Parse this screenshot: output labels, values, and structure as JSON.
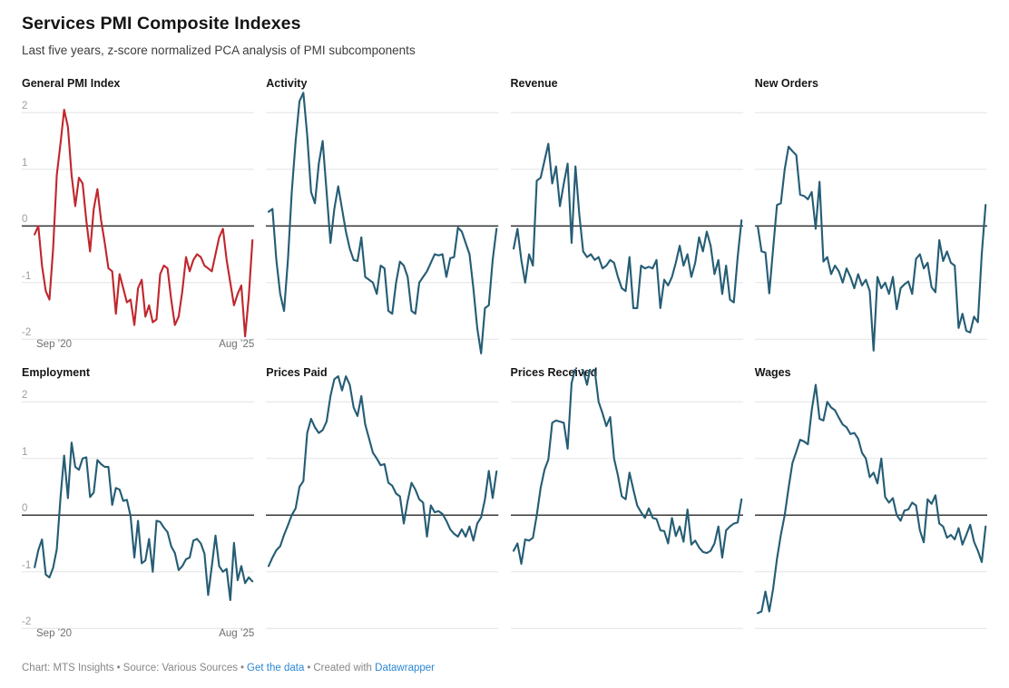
{
  "header": {
    "title": "Services PMI Composite Indexes",
    "subtitle": "Last five years, z-score normalized PCA analysis of PMI subcomponents"
  },
  "footer": {
    "chart_credit": "Chart: MTS Insights",
    "source_label": "Source: Various Sources",
    "get_data_link": "Get the data",
    "created_with": "Created with",
    "datawrapper_link": "Datawrapper",
    "separator": "•"
  },
  "colors": {
    "highlight_red": "#c0272d",
    "series_blue": "#255d75",
    "gridline": "#e4e4e4",
    "zero_line": "#121212",
    "link_blue": "#2b87d3"
  },
  "chart_data": {
    "type": "line",
    "layout": "small-multiples 4x2",
    "x_unit": "month",
    "n_points": 60,
    "x_start_label": "Sep ’20",
    "x_end_label": "Aug ’25",
    "x_tick_labels": [
      "Sep ’20",
      "Aug ’25"
    ],
    "ylim": [
      -2.3,
      2.58
    ],
    "yticks": [
      2,
      1,
      0,
      -1,
      -2
    ],
    "ytick_labels": [
      "2",
      "1",
      "0",
      "-1",
      "-2"
    ],
    "grid": "horizontal-only",
    "legend_position": "none",
    "panels": [
      {
        "title": "General PMI Index",
        "color": "#c0272d",
        "values": [
          -0.15,
          0.0,
          -0.7,
          -1.15,
          -1.3,
          -0.4,
          0.9,
          1.45,
          2.05,
          1.75,
          0.9,
          0.35,
          0.85,
          0.75,
          0.1,
          -0.45,
          0.3,
          0.65,
          0.1,
          -0.3,
          -0.75,
          -0.8,
          -1.55,
          -0.85,
          -1.1,
          -1.35,
          -1.3,
          -1.75,
          -1.1,
          -0.95,
          -1.6,
          -1.4,
          -1.7,
          -1.65,
          -0.85,
          -0.7,
          -0.75,
          -1.3,
          -1.75,
          -1.6,
          -1.15,
          -0.55,
          -0.8,
          -0.6,
          -0.5,
          -0.55,
          -0.7,
          -0.75,
          -0.8,
          -0.5,
          -0.2,
          -0.05,
          -0.6,
          -1.0,
          -1.4,
          -1.2,
          -1.05,
          -1.95,
          -1.25,
          -0.25
        ]
      },
      {
        "title": "Activity",
        "color": "#255d75",
        "values": [
          0.25,
          0.3,
          -0.6,
          -1.2,
          -1.5,
          -0.6,
          0.6,
          1.5,
          2.2,
          2.35,
          1.6,
          0.6,
          0.4,
          1.1,
          1.5,
          0.6,
          -0.3,
          0.3,
          0.7,
          0.3,
          -0.1,
          -0.4,
          -0.6,
          -0.62,
          -0.2,
          -0.9,
          -0.95,
          -1.0,
          -1.2,
          -0.7,
          -0.75,
          -1.5,
          -1.55,
          -1.0,
          -0.63,
          -0.7,
          -0.9,
          -1.5,
          -1.55,
          -1.0,
          -0.9,
          -0.8,
          -0.65,
          -0.5,
          -0.52,
          -0.5,
          -0.9,
          -0.57,
          -0.55,
          -0.03,
          -0.1,
          -0.3,
          -0.5,
          -1.1,
          -1.8,
          -2.25,
          -1.45,
          -1.4,
          -0.6,
          -0.05
        ]
      },
      {
        "title": "Revenue",
        "color": "#255d75",
        "values": [
          -0.4,
          -0.05,
          -0.6,
          -1.0,
          -0.5,
          -0.7,
          0.8,
          0.85,
          1.15,
          1.45,
          0.75,
          1.05,
          0.35,
          0.75,
          1.1,
          -0.3,
          1.05,
          0.2,
          -0.45,
          -0.55,
          -0.5,
          -0.6,
          -0.55,
          -0.75,
          -0.7,
          -0.6,
          -0.65,
          -0.9,
          -1.1,
          -1.15,
          -0.55,
          -1.45,
          -1.45,
          -0.7,
          -0.75,
          -0.72,
          -0.75,
          -0.6,
          -1.45,
          -0.95,
          -1.05,
          -0.9,
          -0.65,
          -0.35,
          -0.7,
          -0.5,
          -0.9,
          -0.65,
          -0.2,
          -0.45,
          -0.1,
          -0.35,
          -0.85,
          -0.6,
          -1.2,
          -0.7,
          -1.3,
          -1.35,
          -0.55,
          0.1
        ]
      },
      {
        "title": "New Orders",
        "color": "#255d75",
        "values": [
          0.0,
          -0.45,
          -0.47,
          -1.19,
          -0.4,
          0.37,
          0.4,
          1.0,
          1.4,
          1.32,
          1.25,
          0.55,
          0.53,
          0.47,
          0.6,
          -0.05,
          0.78,
          -0.63,
          -0.55,
          -0.85,
          -0.7,
          -0.8,
          -1.0,
          -0.75,
          -0.9,
          -1.1,
          -0.85,
          -1.05,
          -0.95,
          -1.15,
          -2.2,
          -0.9,
          -1.1,
          -1.0,
          -1.2,
          -0.9,
          -1.47,
          -1.1,
          -1.03,
          -0.98,
          -1.2,
          -0.58,
          -0.5,
          -0.75,
          -0.65,
          -1.08,
          -1.17,
          -0.25,
          -0.62,
          -0.45,
          -0.65,
          -0.7,
          -1.8,
          -1.55,
          -1.85,
          -1.88,
          -1.6,
          -1.7,
          -0.5,
          0.37
        ]
      },
      {
        "title": "Employment",
        "color": "#255d75",
        "values": [
          -0.92,
          -0.62,
          -0.43,
          -1.05,
          -1.1,
          -0.93,
          -0.6,
          0.3,
          1.05,
          0.3,
          1.28,
          0.85,
          0.8,
          1.0,
          1.02,
          0.32,
          0.4,
          0.97,
          0.9,
          0.85,
          0.85,
          0.18,
          0.48,
          0.45,
          0.25,
          0.27,
          -0.02,
          -0.75,
          -0.1,
          -0.85,
          -0.8,
          -0.42,
          -1.0,
          -0.1,
          -0.12,
          -0.22,
          -0.3,
          -0.55,
          -0.67,
          -0.97,
          -0.9,
          -0.78,
          -0.75,
          -0.45,
          -0.42,
          -0.5,
          -0.68,
          -1.41,
          -0.9,
          -0.36,
          -0.9,
          -1.0,
          -0.95,
          -1.5,
          -0.49,
          -1.15,
          -0.9,
          -1.2,
          -1.1,
          -1.17
        ]
      },
      {
        "title": "Prices Paid",
        "color": "#255d75",
        "values": [
          -0.9,
          -0.75,
          -0.62,
          -0.55,
          -0.35,
          -0.18,
          0.0,
          0.12,
          0.5,
          0.6,
          1.45,
          1.7,
          1.55,
          1.45,
          1.5,
          1.65,
          2.1,
          2.4,
          2.45,
          2.2,
          2.45,
          2.3,
          1.9,
          1.75,
          2.1,
          1.6,
          1.35,
          1.1,
          1.0,
          0.88,
          0.9,
          0.57,
          0.52,
          0.38,
          0.33,
          -0.15,
          0.25,
          0.57,
          0.45,
          0.28,
          0.22,
          -0.38,
          0.17,
          0.05,
          0.07,
          0.02,
          -0.1,
          -0.25,
          -0.33,
          -0.38,
          -0.25,
          -0.38,
          -0.2,
          -0.45,
          -0.15,
          -0.04,
          0.28,
          0.78,
          0.3,
          0.77
        ]
      },
      {
        "title": "Prices Received",
        "color": "#255d75",
        "values": [
          -0.63,
          -0.5,
          -0.86,
          -0.43,
          -0.45,
          -0.4,
          0.0,
          0.48,
          0.8,
          0.98,
          1.63,
          1.67,
          1.65,
          1.63,
          1.17,
          2.33,
          2.6,
          2.65,
          2.55,
          2.3,
          2.65,
          2.55,
          2.0,
          1.8,
          1.57,
          1.73,
          1.0,
          0.7,
          0.33,
          0.28,
          0.75,
          0.45,
          0.17,
          0.05,
          -0.05,
          0.12,
          -0.05,
          -0.07,
          -0.27,
          -0.28,
          -0.5,
          -0.05,
          -0.37,
          -0.2,
          -0.47,
          0.1,
          -0.52,
          -0.45,
          -0.57,
          -0.65,
          -0.67,
          -0.63,
          -0.5,
          -0.2,
          -0.75,
          -0.27,
          -0.2,
          -0.15,
          -0.13,
          0.28
        ]
      },
      {
        "title": "Wages",
        "color": "#255d75",
        "values": [
          -1.73,
          -1.7,
          -1.35,
          -1.7,
          -1.3,
          -0.77,
          -0.35,
          0.0,
          0.48,
          0.92,
          1.12,
          1.33,
          1.3,
          1.25,
          1.85,
          2.3,
          1.7,
          1.67,
          2.0,
          1.9,
          1.85,
          1.72,
          1.6,
          1.55,
          1.43,
          1.45,
          1.35,
          1.1,
          1.0,
          0.67,
          0.75,
          0.56,
          1.0,
          0.32,
          0.22,
          0.3,
          0.0,
          -0.1,
          0.08,
          0.1,
          0.22,
          0.17,
          -0.27,
          -0.48,
          0.28,
          0.2,
          0.35,
          -0.15,
          -0.2,
          -0.4,
          -0.35,
          -0.43,
          -0.23,
          -0.52,
          -0.35,
          -0.17,
          -0.47,
          -0.63,
          -0.83,
          -0.2
        ]
      }
    ]
  }
}
